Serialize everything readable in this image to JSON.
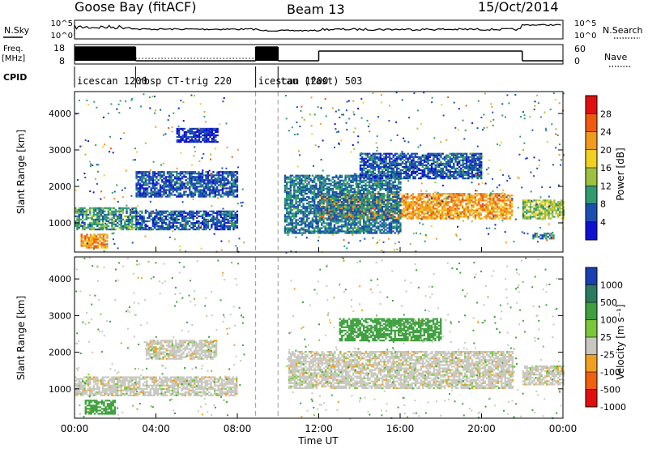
{
  "header": {
    "station": "Goose Bay (fitACF)",
    "beam": "Beam 13",
    "date": "15/Oct/2014"
  },
  "chart_data": [
    {
      "type": "line",
      "panel": "noise",
      "left_label": "N.Sky",
      "right_label": "N.Search",
      "left_ticks": [
        "10^5",
        "10^0"
      ],
      "right_ticks": [
        "10^5",
        "10^0"
      ]
    },
    {
      "type": "line",
      "panel": "frequency",
      "left_label_line1": "Freq.",
      "left_label_line2": "[MHz]",
      "right_label": "Nave",
      "left_ticks": [
        "18",
        "8"
      ],
      "right_ticks": [
        "60",
        "0"
      ],
      "freq_steps": [
        {
          "start_h": 0.0,
          "end_h": 3.0,
          "state": "high"
        },
        {
          "start_h": 3.0,
          "end_h": 8.9,
          "state": "low"
        },
        {
          "start_h": 8.9,
          "end_h": 10.0,
          "state": "high"
        },
        {
          "start_h": 10.0,
          "end_h": 12.0,
          "state": "low"
        },
        {
          "start_h": 12.0,
          "end_h": 22.0,
          "state": "mid"
        },
        {
          "start_h": 22.0,
          "end_h": 24.0,
          "state": "low"
        }
      ]
    },
    {
      "type": "table",
      "panel": "cpid",
      "label": "CPID",
      "segments": [
        {
          "start_h": 0.0,
          "text": "icescan 1200"
        },
        {
          "start_h": 3.0,
          "text": "rbsp CT-trig 220"
        },
        {
          "start_h": 8.9,
          "text": "icescan 1200"
        },
        {
          "start_h": 10.0,
          "text": "tau (fast) 503"
        }
      ]
    },
    {
      "type": "heatmap",
      "panel": "power",
      "ylabel": "Slant Range [km]",
      "ylim": [
        200,
        4600
      ],
      "y_ticks": [
        1000,
        2000,
        3000,
        4000
      ],
      "colorbar_label": "Power [dB]",
      "colorbar_ticks": [
        "28",
        "24",
        "20",
        "16",
        "12",
        "8",
        "4"
      ],
      "colorbar_colors": [
        "#e01010",
        "#f05a10",
        "#f09a20",
        "#f0d020",
        "#a0c040",
        "#2f9a70",
        "#1a4fb0",
        "#1010d0"
      ],
      "bands": [
        {
          "start_h": 0.0,
          "end_h": 3.0,
          "lo": 800,
          "hi": 1400,
          "value": 12
        },
        {
          "start_h": 0.3,
          "end_h": 1.6,
          "lo": 300,
          "hi": 700,
          "value": 24
        },
        {
          "start_h": 3.0,
          "end_h": 8.0,
          "lo": 800,
          "hi": 1300,
          "value": 8
        },
        {
          "start_h": 3.0,
          "end_h": 8.0,
          "lo": 1700,
          "hi": 2400,
          "value": 8
        },
        {
          "start_h": 5.0,
          "end_h": 7.0,
          "lo": 3200,
          "hi": 3600,
          "value": 6
        },
        {
          "start_h": 12.0,
          "end_h": 21.5,
          "lo": 1100,
          "hi": 1800,
          "value": 24
        },
        {
          "start_h": 10.3,
          "end_h": 16.0,
          "lo": 700,
          "hi": 2300,
          "value": 10
        },
        {
          "start_h": 14.0,
          "end_h": 20.0,
          "lo": 2200,
          "hi": 2900,
          "value": 8
        },
        {
          "start_h": 22.0,
          "end_h": 24.0,
          "lo": 1100,
          "hi": 1600,
          "value": 16
        },
        {
          "start_h": 22.5,
          "end_h": 23.5,
          "lo": 550,
          "hi": 700,
          "value": 12
        }
      ]
    },
    {
      "type": "heatmap",
      "panel": "velocity",
      "ylabel": "Slant Range [km]",
      "ylim": [
        200,
        4600
      ],
      "y_ticks": [
        1000,
        2000,
        3000,
        4000
      ],
      "xlabel": "Time UT",
      "x_ticks": [
        "00:00",
        "04:00",
        "08:00",
        "12:00",
        "16:00",
        "20:00",
        "00:00"
      ],
      "x_range_h": [
        0,
        24
      ],
      "colorbar_label": "Velocity [m s⁻¹]",
      "colorbar_ticks": [
        "1000",
        "500",
        "100",
        "25",
        "-25",
        "-100",
        "-500",
        "-1000"
      ],
      "colorbar_colors": [
        "#1a3fb0",
        "#2a7a60",
        "#3ea03e",
        "#7ac83a",
        "#c8c8c0",
        "#f0a020",
        "#f06010",
        "#e01010"
      ],
      "bands": [
        {
          "start_h": 0.0,
          "end_h": 8.0,
          "lo": 800,
          "hi": 1300,
          "value": 0
        },
        {
          "start_h": 3.5,
          "end_h": 7.0,
          "lo": 1800,
          "hi": 2300,
          "value": 0
        },
        {
          "start_h": 10.5,
          "end_h": 21.5,
          "lo": 1000,
          "hi": 2000,
          "value": 0
        },
        {
          "start_h": 0.5,
          "end_h": 2.0,
          "lo": 300,
          "hi": 700,
          "value": 200
        },
        {
          "start_h": 13.0,
          "end_h": 18.0,
          "lo": 2300,
          "hi": 2900,
          "value": 200
        },
        {
          "start_h": 22.0,
          "end_h": 24.0,
          "lo": 1100,
          "hi": 1600,
          "value": 0
        }
      ]
    }
  ]
}
